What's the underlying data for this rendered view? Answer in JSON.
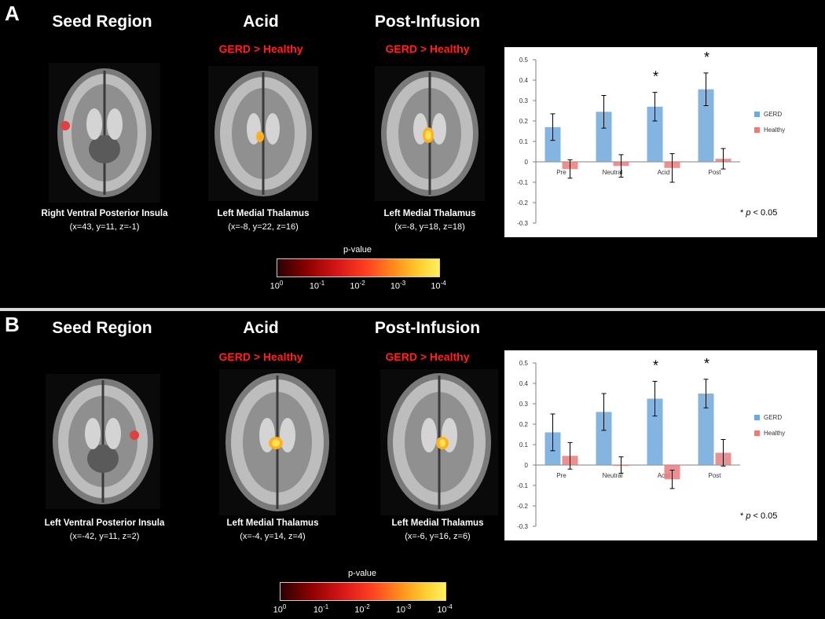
{
  "legend": {
    "sig_prefix": "* ",
    "sig_p": "p",
    "sig_rest": " < 0.05"
  },
  "panels": [
    {
      "letter": "A",
      "columns": [
        {
          "title": "Seed Region",
          "contrast": "",
          "label": "Right Ventral Posterior Insula",
          "coords": "(x=43, y=11, z=-1)"
        },
        {
          "title": "Acid",
          "contrast": "GERD > Healthy",
          "label": "Left Medial Thalamus",
          "coords": "(x=-8, y=22, z=16)"
        },
        {
          "title": "Post-Infusion",
          "contrast": "GERD > Healthy",
          "label": "Left Medial Thalamus",
          "coords": "(x=-8, y=18, z=18)"
        }
      ],
      "colorbar": {
        "title": "p-value",
        "ticks": [
          [
            "10",
            "0"
          ],
          [
            "10",
            "-1"
          ],
          [
            "10",
            "-2"
          ],
          [
            "10",
            "-3"
          ],
          [
            "10",
            "-4"
          ]
        ]
      }
    },
    {
      "letter": "B",
      "columns": [
        {
          "title": "Seed Region",
          "contrast": "",
          "label": "Left Ventral Posterior Insula",
          "coords": "(x=-42, y=11, z=2)"
        },
        {
          "title": "Acid",
          "contrast": "GERD > Healthy",
          "label": "Left Medial Thalamus",
          "coords": "(x=-4, y=14, z=4)"
        },
        {
          "title": "Post-Infusion",
          "contrast": "GERD > Healthy",
          "label": "Left Medial Thalamus",
          "coords": "(x=-6, y=16, z=6)"
        }
      ],
      "colorbar": {
        "title": "p-value",
        "ticks": [
          [
            "10",
            "0"
          ],
          [
            "10",
            "-1"
          ],
          [
            "10",
            "-2"
          ],
          [
            "10",
            "-3"
          ],
          [
            "10",
            "-4"
          ]
        ]
      }
    }
  ],
  "colors": {
    "gerd": "#6fa8dc",
    "healthy": "#e67c7c",
    "contrast_text": "#ff2020"
  },
  "chart_data": [
    {
      "type": "bar",
      "categories": [
        "Pre",
        "Neutral",
        "Acid",
        "Post"
      ],
      "ylim": [
        -0.3,
        0.5
      ],
      "yticks": [
        "0.5",
        "0.4",
        "0.3",
        "0.2",
        "0.1",
        "0",
        "-0.1",
        "-0.2",
        "-0.3"
      ],
      "legend_placement": "right",
      "series": [
        {
          "name": "GERD",
          "values": [
            0.17,
            0.245,
            0.27,
            0.355
          ],
          "errors": [
            0.065,
            0.08,
            0.07,
            0.08
          ]
        },
        {
          "name": "Healthy",
          "values": [
            -0.035,
            -0.02,
            -0.03,
            0.015
          ],
          "errors": [
            0.045,
            0.055,
            0.07,
            0.05
          ]
        }
      ],
      "significant": [
        false,
        false,
        true,
        true
      ],
      "sig_mark": "*"
    },
    {
      "type": "bar",
      "categories": [
        "Pre",
        "Neutral",
        "Acid",
        "Post"
      ],
      "ylim": [
        -0.3,
        0.5
      ],
      "yticks": [
        "0.5",
        "0.4",
        "0.3",
        "0.2",
        "0.1",
        "0",
        "-0.1",
        "-0.2",
        "-0.3"
      ],
      "legend_placement": "right",
      "series": [
        {
          "name": "GERD",
          "values": [
            0.16,
            0.26,
            0.325,
            0.35
          ],
          "errors": [
            0.09,
            0.09,
            0.085,
            0.07
          ]
        },
        {
          "name": "Healthy",
          "values": [
            0.045,
            0.0,
            -0.07,
            0.06
          ],
          "errors": [
            0.065,
            0.04,
            0.045,
            0.065
          ]
        }
      ],
      "significant": [
        false,
        false,
        true,
        true
      ],
      "sig_mark": "*"
    }
  ]
}
